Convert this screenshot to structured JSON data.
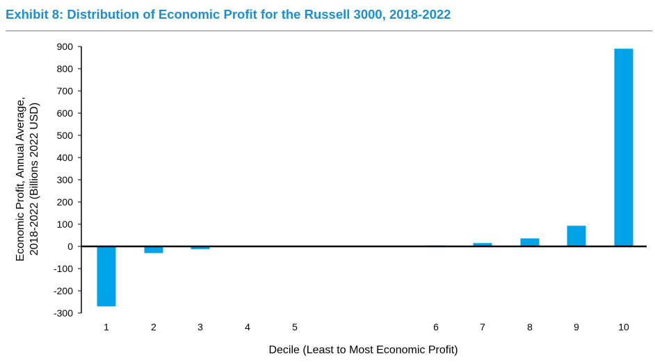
{
  "title": "Exhibit 8: Distribution of Economic Profit for the Russell 3000, 2018-2022",
  "chart_data": {
    "type": "bar",
    "title": "Exhibit 8: Distribution of Economic Profit for the Russell 3000, 2018-2022",
    "xlabel": "Decile (Least to Most Economic Profit)",
    "ylabel": [
      "Economic Profit, Annual Average,",
      "2018-2022 (Billions 2022 USD)"
    ],
    "ylim": [
      -300,
      900
    ],
    "yticks": [
      900,
      800,
      700,
      600,
      500,
      400,
      300,
      200,
      100,
      0,
      -100,
      -200,
      -300
    ],
    "categories": [
      "1",
      "2",
      "3",
      "4",
      "5",
      "6",
      "7",
      "8",
      "9",
      "10"
    ],
    "values": [
      -270,
      -30,
      -12,
      -2,
      -1,
      4,
      15,
      36,
      93,
      890
    ],
    "bar_color": "#00a3e8",
    "grid": false,
    "legend": "none"
  }
}
